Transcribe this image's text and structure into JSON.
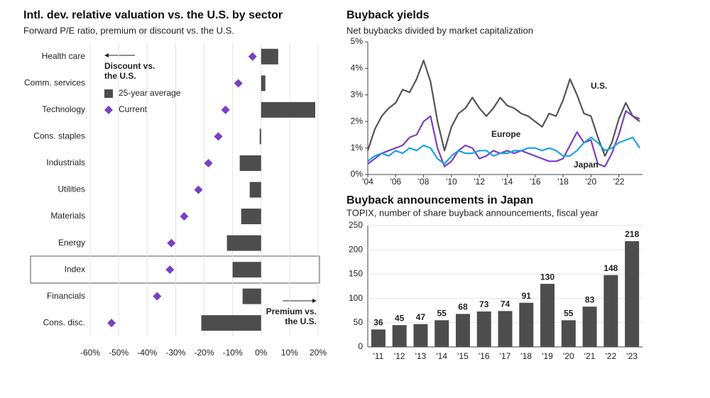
{
  "chart_data": [
    {
      "type": "bar",
      "orientation": "horizontal",
      "title": "Intl. dev. relative valuation vs. the U.S. by sector",
      "subtitle": "Forward P/E ratio, premium or discount vs. the U.S.",
      "categories": [
        "Health care",
        "Comm. services",
        "Technology",
        "Cons. staples",
        "Industrials",
        "Utilities",
        "Materials",
        "Energy",
        "Index",
        "Financials",
        "Cons. disc."
      ],
      "series": [
        {
          "name": "25-year average",
          "mark": "bar",
          "color": "#4d4d4d",
          "values": [
            6,
            1.5,
            19,
            -0.5,
            -7.5,
            -4,
            -7,
            -12,
            -10,
            -6.5,
            -21
          ]
        },
        {
          "name": "Current",
          "mark": "diamond",
          "color": "#7a3fc4",
          "values": [
            -3,
            -8,
            -12.5,
            -15,
            -18.5,
            -22,
            -27,
            -31.5,
            -32,
            -36.5,
            -52.5
          ]
        }
      ],
      "xlim": [
        -60,
        20
      ],
      "xticks": [
        {
          "value": -60,
          "label": "-60%"
        },
        {
          "value": -50,
          "label": "-50%"
        },
        {
          "value": -40,
          "label": "-40%"
        },
        {
          "value": -30,
          "label": "-30%"
        },
        {
          "value": -20,
          "label": "-20%"
        },
        {
          "value": -10,
          "label": "-10%"
        },
        {
          "value": 0,
          "label": "0%"
        },
        {
          "value": 10,
          "label": "10%"
        },
        {
          "value": 20,
          "label": "20%"
        }
      ],
      "grid": true,
      "annotations": [
        "Discount vs. the U.S.",
        "Premium vs. the U.S."
      ]
    },
    {
      "type": "line",
      "title": "Buyback yields",
      "subtitle": "Net buybacks divided by market capitalization",
      "x": [
        2004,
        2004.5,
        2005,
        2005.5,
        2006,
        2006.5,
        2007,
        2007.5,
        2008,
        2008.5,
        2009,
        2009.5,
        2010,
        2010.5,
        2011,
        2011.5,
        2012,
        2012.5,
        2013,
        2013.5,
        2014,
        2014.5,
        2015,
        2015.5,
        2016,
        2016.5,
        2017,
        2017.5,
        2018,
        2018.5,
        2019,
        2019.5,
        2020,
        2020.5,
        2021,
        2021.5,
        2022,
        2022.5,
        2023,
        2023.5
      ],
      "series": [
        {
          "name": "U.S.",
          "color": "#555555",
          "values": [
            0.9,
            1.7,
            2.2,
            2.5,
            2.7,
            3.2,
            3.1,
            3.6,
            4.3,
            3.5,
            2.0,
            0.9,
            1.8,
            2.3,
            2.5,
            2.9,
            2.5,
            2.2,
            2.5,
            2.9,
            2.6,
            2.5,
            2.3,
            2.2,
            2.0,
            1.8,
            2.3,
            2.2,
            2.8,
            3.6,
            3.0,
            2.3,
            2.2,
            1.4,
            0.7,
            1.2,
            2.1,
            2.7,
            2.2,
            2.0
          ]
        },
        {
          "name": "Europe",
          "color": "#7b3fbf",
          "values": [
            0.4,
            0.6,
            0.8,
            0.9,
            1.0,
            1.1,
            1.4,
            1.5,
            2.0,
            2.2,
            1.0,
            0.3,
            0.5,
            0.9,
            1.1,
            1.0,
            0.6,
            0.7,
            0.9,
            0.8,
            0.9,
            0.8,
            0.9,
            0.8,
            0.7,
            0.6,
            0.5,
            0.5,
            0.6,
            1.1,
            1.6,
            1.2,
            1.3,
            0.4,
            0.3,
            0.8,
            1.5,
            2.4,
            2.2,
            2.1
          ]
        },
        {
          "name": "Japan",
          "color": "#1aa3e8",
          "values": [
            0.5,
            0.7,
            0.8,
            0.7,
            0.9,
            0.8,
            1.0,
            0.9,
            1.1,
            1.0,
            0.6,
            0.4,
            0.7,
            0.9,
            0.8,
            0.8,
            0.9,
            0.9,
            0.7,
            0.8,
            0.8,
            0.9,
            0.9,
            1.0,
            1.0,
            0.9,
            1.0,
            0.9,
            0.7,
            0.7,
            0.9,
            1.2,
            1.4,
            1.2,
            0.9,
            1.0,
            1.2,
            1.3,
            1.4,
            1.0
          ]
        }
      ],
      "xlim": [
        2004,
        2023.7
      ],
      "xticks": [
        {
          "value": 2004,
          "label": "'04"
        },
        {
          "value": 2006,
          "label": "'06"
        },
        {
          "value": 2008,
          "label": "'08"
        },
        {
          "value": 2010,
          "label": "'10"
        },
        {
          "value": 2012,
          "label": "'12"
        },
        {
          "value": 2014,
          "label": "'14"
        },
        {
          "value": 2016,
          "label": "'16"
        },
        {
          "value": 2018,
          "label": "'18"
        },
        {
          "value": 2020,
          "label": "'20"
        },
        {
          "value": 2022,
          "label": "'22"
        }
      ],
      "ylim": [
        0,
        5
      ],
      "yticks": [
        {
          "value": 0,
          "label": "0%"
        },
        {
          "value": 1,
          "label": "1%"
        },
        {
          "value": 2,
          "label": "2%"
        },
        {
          "value": 3,
          "label": "3%"
        },
        {
          "value": 4,
          "label": "4%"
        },
        {
          "value": 5,
          "label": "5%"
        }
      ]
    },
    {
      "type": "bar",
      "title": "Buyback announcements in Japan",
      "subtitle": "TOPIX, number of share buyback announcements, fiscal year",
      "categories": [
        "'11",
        "'12",
        "'13",
        "'14",
        "'15",
        "'16",
        "'17",
        "'18",
        "'19",
        "'20",
        "'21",
        "'22",
        "'23"
      ],
      "values": [
        36,
        45,
        47,
        55,
        68,
        73,
        74,
        91,
        130,
        55,
        83,
        148,
        218
      ],
      "color": "#4d4d4d",
      "ylim": [
        0,
        250
      ],
      "yticks": [
        0,
        50,
        100,
        150,
        200,
        250
      ],
      "grid": true
    }
  ]
}
